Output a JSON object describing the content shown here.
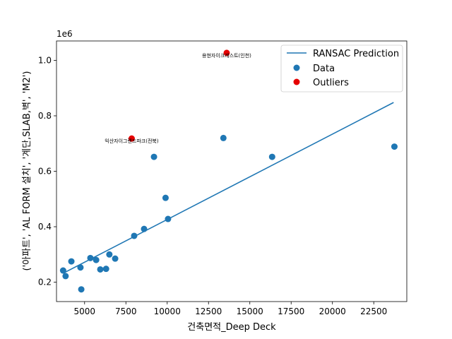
{
  "chart_data": {
    "type": "scatter",
    "xlabel": "건축면적_Deep Deck",
    "ylabel": "('아파트', 'AL FORM 설치', '계단,SLAB,벽', 'M2')",
    "y_offset_label": "1e6",
    "xlim": [
      3300,
      24500
    ],
    "ylim": [
      0.13,
      1.07
    ],
    "x_ticks": [
      5000,
      7500,
      10000,
      12500,
      15000,
      17500,
      20000,
      22500
    ],
    "x_tick_labels": [
      "5000",
      "7500",
      "10000",
      "12500",
      "15000",
      "17500",
      "20000",
      "22500"
    ],
    "y_ticks": [
      0.2,
      0.4,
      0.6,
      0.8,
      1.0
    ],
    "y_tick_labels": [
      "0.2",
      "0.4",
      "0.6",
      "0.8",
      "1.0"
    ],
    "colors": {
      "data": "#1f77b4",
      "outlier": "#e50000",
      "line": "#1f77b4"
    },
    "legend": {
      "position": "top-right",
      "entries": [
        {
          "label": "RANSAC Prediction",
          "kind": "line"
        },
        {
          "label": "Data",
          "kind": "data"
        },
        {
          "label": "Outliers",
          "kind": "outlier"
        }
      ]
    },
    "prediction_line": {
      "x": [
        3700,
        23700
      ],
      "y": [
        0.232,
        0.848
      ]
    },
    "data_points": [
      {
        "x": 3700,
        "y": 0.242
      },
      {
        "x": 3850,
        "y": 0.222
      },
      {
        "x": 4200,
        "y": 0.275
      },
      {
        "x": 4750,
        "y": 0.253
      },
      {
        "x": 4800,
        "y": 0.174
      },
      {
        "x": 5350,
        "y": 0.287
      },
      {
        "x": 5700,
        "y": 0.28
      },
      {
        "x": 5950,
        "y": 0.246
      },
      {
        "x": 6300,
        "y": 0.248
      },
      {
        "x": 6500,
        "y": 0.3
      },
      {
        "x": 6850,
        "y": 0.285
      },
      {
        "x": 8000,
        "y": 0.367
      },
      {
        "x": 8600,
        "y": 0.392
      },
      {
        "x": 9200,
        "y": 0.652
      },
      {
        "x": 9900,
        "y": 0.504
      },
      {
        "x": 10050,
        "y": 0.428
      },
      {
        "x": 13400,
        "y": 0.72
      },
      {
        "x": 16350,
        "y": 0.652
      },
      {
        "x": 23750,
        "y": 0.689
      }
    ],
    "outliers": [
      {
        "x": 7850,
        "y": 0.718,
        "label": "익산자이그랜드파크(전북)"
      },
      {
        "x": 13600,
        "y": 1.027,
        "label": "용현자이크레스트(인천)"
      }
    ]
  }
}
